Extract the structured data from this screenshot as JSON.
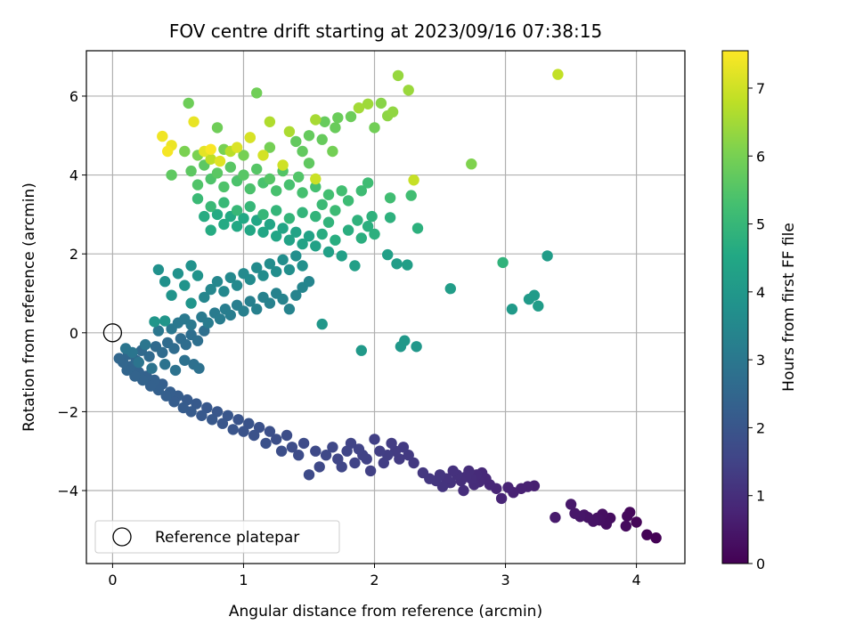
{
  "chart_data": {
    "type": "scatter",
    "title": "FOV centre drift starting at 2023/09/16 07:38:15",
    "xlabel": "Angular distance from reference (arcmin)",
    "ylabel": "Rotation from reference (arcmin)",
    "xlim": [
      -0.2,
      4.37
    ],
    "ylim": [
      -5.85,
      7.15
    ],
    "xticks": [
      0,
      1,
      2,
      3,
      4
    ],
    "yticks": [
      -4,
      -2,
      0,
      2,
      4,
      6
    ],
    "grid": true,
    "legend": {
      "position": "lower-left",
      "entries": [
        "Reference platepar"
      ]
    },
    "reference_point": {
      "x": 0,
      "y": 0,
      "label": "Reference platepar"
    },
    "colorbar": {
      "label": "Hours from first FF file",
      "colormap": "viridis",
      "range": [
        0,
        7.55
      ],
      "ticks": [
        0,
        1,
        2,
        3,
        4,
        5,
        6,
        7
      ]
    },
    "points": [
      [
        4.15,
        -5.2,
        0.02
      ],
      [
        4.08,
        -5.12,
        0.05
      ],
      [
        4.0,
        -4.8,
        0.1
      ],
      [
        3.95,
        -4.55,
        0.15
      ],
      [
        3.93,
        -4.65,
        0.18
      ],
      [
        3.92,
        -4.9,
        0.2
      ],
      [
        3.8,
        -4.7,
        0.25
      ],
      [
        3.77,
        -4.85,
        0.28
      ],
      [
        3.74,
        -4.6,
        0.3
      ],
      [
        3.72,
        -4.75,
        0.33
      ],
      [
        3.7,
        -4.7,
        0.35
      ],
      [
        3.67,
        -4.78,
        0.38
      ],
      [
        3.63,
        -4.68,
        0.4
      ],
      [
        3.6,
        -4.62,
        0.42
      ],
      [
        3.57,
        -4.66,
        0.45
      ],
      [
        3.53,
        -4.58,
        0.48
      ],
      [
        3.5,
        -4.35,
        0.5
      ],
      [
        3.38,
        -4.68,
        0.55
      ],
      [
        3.22,
        -3.88,
        0.65
      ],
      [
        3.17,
        -3.9,
        0.68
      ],
      [
        3.12,
        -3.95,
        0.7
      ],
      [
        3.06,
        -4.05,
        0.72
      ],
      [
        3.02,
        -3.92,
        0.75
      ],
      [
        2.97,
        -4.2,
        0.78
      ],
      [
        2.93,
        -3.95,
        0.8
      ],
      [
        2.88,
        -3.85,
        0.82
      ],
      [
        2.85,
        -3.7,
        0.85
      ],
      [
        2.82,
        -3.55,
        0.88
      ],
      [
        2.8,
        -3.78,
        0.9
      ],
      [
        2.78,
        -3.6,
        0.92
      ],
      [
        2.76,
        -3.85,
        0.94
      ],
      [
        2.74,
        -3.7,
        0.96
      ],
      [
        2.72,
        -3.5,
        0.98
      ],
      [
        2.7,
        -3.65,
        1.0
      ],
      [
        2.68,
        -4.0,
        1.0
      ],
      [
        2.66,
        -3.75,
        1.02
      ],
      [
        2.63,
        -3.6,
        1.05
      ],
      [
        2.6,
        -3.5,
        1.07
      ],
      [
        2.58,
        -3.8,
        1.1
      ],
      [
        2.55,
        -3.7,
        1.12
      ],
      [
        2.52,
        -3.9,
        1.14
      ],
      [
        2.5,
        -3.6,
        1.16
      ],
      [
        2.47,
        -3.75,
        1.18
      ],
      [
        2.42,
        -3.7,
        1.2
      ],
      [
        2.37,
        -3.55,
        1.22
      ],
      [
        2.3,
        -3.3,
        1.25
      ],
      [
        2.26,
        -3.1,
        1.27
      ],
      [
        2.22,
        -2.9,
        1.3
      ],
      [
        2.19,
        -3.2,
        1.3
      ],
      [
        2.16,
        -3.0,
        1.32
      ],
      [
        2.13,
        -2.8,
        1.34
      ],
      [
        2.1,
        -3.1,
        1.36
      ],
      [
        2.07,
        -3.3,
        1.38
      ],
      [
        2.04,
        -3.0,
        1.4
      ],
      [
        2.0,
        -2.7,
        1.42
      ],
      [
        1.97,
        -3.5,
        1.44
      ],
      [
        1.94,
        -3.2,
        1.46
      ],
      [
        1.91,
        -3.1,
        1.48
      ],
      [
        1.88,
        -2.95,
        1.5
      ],
      [
        1.85,
        -3.3,
        1.52
      ],
      [
        1.82,
        -2.8,
        1.54
      ],
      [
        1.79,
        -3.0,
        1.56
      ],
      [
        1.75,
        -3.4,
        1.58
      ],
      [
        1.72,
        -3.2,
        1.6
      ],
      [
        1.68,
        -2.9,
        1.62
      ],
      [
        1.63,
        -3.1,
        1.64
      ],
      [
        1.58,
        -3.4,
        1.66
      ],
      [
        1.55,
        -3.0,
        1.68
      ],
      [
        1.5,
        -3.6,
        1.7
      ],
      [
        1.46,
        -2.8,
        1.72
      ],
      [
        1.42,
        -3.1,
        1.74
      ],
      [
        1.37,
        -2.9,
        1.76
      ],
      [
        1.33,
        -2.6,
        1.78
      ],
      [
        1.29,
        -3.0,
        1.8
      ],
      [
        1.25,
        -2.7,
        1.82
      ],
      [
        1.2,
        -2.5,
        1.84
      ],
      [
        1.17,
        -2.8,
        1.86
      ],
      [
        1.12,
        -2.4,
        1.88
      ],
      [
        1.08,
        -2.6,
        1.9
      ],
      [
        1.04,
        -2.3,
        1.92
      ],
      [
        1.0,
        -2.5,
        1.94
      ],
      [
        0.96,
        -2.2,
        1.96
      ],
      [
        0.92,
        -2.45,
        1.98
      ],
      [
        0.88,
        -2.1,
        2.0
      ],
      [
        0.84,
        -2.3,
        2.02
      ],
      [
        0.8,
        -2.0,
        2.04
      ],
      [
        0.76,
        -2.2,
        2.06
      ],
      [
        0.72,
        -1.9,
        2.08
      ],
      [
        0.68,
        -2.1,
        2.1
      ],
      [
        0.64,
        -1.8,
        2.12
      ],
      [
        0.6,
        -2.0,
        2.14
      ],
      [
        0.57,
        -1.7,
        2.16
      ],
      [
        0.54,
        -1.9,
        2.18
      ],
      [
        0.5,
        -1.6,
        2.2
      ],
      [
        0.47,
        -1.75,
        2.22
      ],
      [
        0.44,
        -1.5,
        2.24
      ],
      [
        0.41,
        -1.6,
        2.26
      ],
      [
        0.38,
        -1.3,
        2.28
      ],
      [
        0.35,
        -1.45,
        2.3
      ],
      [
        0.32,
        -1.2,
        2.32
      ],
      [
        0.29,
        -1.35,
        2.34
      ],
      [
        0.26,
        -1.1,
        2.36
      ],
      [
        0.23,
        -1.2,
        2.38
      ],
      [
        0.2,
        -1.0,
        2.4
      ],
      [
        0.17,
        -1.1,
        2.42
      ],
      [
        0.14,
        -0.85,
        2.44
      ],
      [
        0.11,
        -0.95,
        2.46
      ],
      [
        0.08,
        -0.75,
        2.48
      ],
      [
        0.05,
        -0.65,
        2.5
      ],
      [
        0.12,
        -0.55,
        2.52
      ],
      [
        0.18,
        -0.7,
        2.54
      ],
      [
        0.22,
        -0.45,
        2.56
      ],
      [
        0.28,
        -0.6,
        2.58
      ],
      [
        0.33,
        -0.35,
        2.6
      ],
      [
        0.38,
        -0.5,
        2.62
      ],
      [
        0.42,
        -0.25,
        2.64
      ],
      [
        0.47,
        -0.4,
        2.66
      ],
      [
        0.52,
        -0.15,
        2.68
      ],
      [
        0.56,
        -0.3,
        2.7
      ],
      [
        0.6,
        -0.05,
        2.72
      ],
      [
        0.65,
        -0.2,
        2.74
      ],
      [
        0.7,
        0.05,
        2.76
      ],
      [
        0.62,
        -0.8,
        2.78
      ],
      [
        0.66,
        -0.9,
        2.8
      ],
      [
        0.55,
        -0.7,
        2.82
      ],
      [
        0.48,
        -0.95,
        2.84
      ],
      [
        0.4,
        -0.8,
        2.86
      ],
      [
        0.3,
        -0.9,
        2.88
      ],
      [
        0.2,
        -0.75,
        2.9
      ],
      [
        0.15,
        -0.5,
        2.92
      ],
      [
        0.1,
        -0.4,
        2.94
      ],
      [
        0.25,
        -0.3,
        2.96
      ],
      [
        0.35,
        0.05,
        2.98
      ],
      [
        0.45,
        0.1,
        3.0
      ],
      [
        0.5,
        0.25,
        3.02
      ],
      [
        0.55,
        0.35,
        3.04
      ],
      [
        0.6,
        0.2,
        3.06
      ],
      [
        0.68,
        0.4,
        3.08
      ],
      [
        0.73,
        0.25,
        3.1
      ],
      [
        0.78,
        0.5,
        3.12
      ],
      [
        0.82,
        0.35,
        3.14
      ],
      [
        0.86,
        0.6,
        3.16
      ],
      [
        0.9,
        0.45,
        3.18
      ],
      [
        0.95,
        0.7,
        3.2
      ],
      [
        1.0,
        0.55,
        3.22
      ],
      [
        1.05,
        0.8,
        3.24
      ],
      [
        1.1,
        0.6,
        3.26
      ],
      [
        1.15,
        0.9,
        3.28
      ],
      [
        1.2,
        0.75,
        3.3
      ],
      [
        1.25,
        1.0,
        3.32
      ],
      [
        1.3,
        0.85,
        3.34
      ],
      [
        1.35,
        0.6,
        3.36
      ],
      [
        1.4,
        0.95,
        3.38
      ],
      [
        1.45,
        1.15,
        3.4
      ],
      [
        1.5,
        1.3,
        3.42
      ],
      [
        0.7,
        0.9,
        3.44
      ],
      [
        0.75,
        1.1,
        3.46
      ],
      [
        0.8,
        1.3,
        3.48
      ],
      [
        0.85,
        1.05,
        3.5
      ],
      [
        0.9,
        1.4,
        3.52
      ],
      [
        0.95,
        1.2,
        3.54
      ],
      [
        1.0,
        1.5,
        3.56
      ],
      [
        1.05,
        1.35,
        3.58
      ],
      [
        1.1,
        1.65,
        3.6
      ],
      [
        1.15,
        1.45,
        3.62
      ],
      [
        1.2,
        1.75,
        3.64
      ],
      [
        1.25,
        1.55,
        3.66
      ],
      [
        1.3,
        1.85,
        3.68
      ],
      [
        1.35,
        1.6,
        3.7
      ],
      [
        1.4,
        1.95,
        3.72
      ],
      [
        1.45,
        1.7,
        3.74
      ],
      [
        0.35,
        1.6,
        3.76
      ],
      [
        0.4,
        1.3,
        3.78
      ],
      [
        0.5,
        1.5,
        3.8
      ],
      [
        0.6,
        1.7,
        3.82
      ],
      [
        0.65,
        1.45,
        3.84
      ],
      [
        0.55,
        1.2,
        3.86
      ],
      [
        0.45,
        0.95,
        3.88
      ],
      [
        0.6,
        0.75,
        3.9
      ],
      [
        0.4,
        0.3,
        3.92
      ],
      [
        0.32,
        0.28,
        3.94
      ],
      [
        1.6,
        0.22,
        3.96
      ],
      [
        2.32,
        -0.35,
        3.98
      ],
      [
        2.2,
        -0.35,
        4.0
      ],
      [
        2.23,
        -0.2,
        4.02
      ],
      [
        1.9,
        -0.45,
        4.04
      ],
      [
        3.05,
        0.6,
        4.06
      ],
      [
        3.18,
        0.85,
        4.08
      ],
      [
        3.22,
        0.95,
        4.1
      ],
      [
        3.25,
        0.68,
        4.12
      ],
      [
        3.32,
        1.95,
        4.14
      ],
      [
        2.58,
        1.12,
        4.16
      ],
      [
        2.17,
        1.75,
        4.18
      ],
      [
        2.25,
        1.72,
        4.2
      ],
      [
        2.1,
        1.98,
        4.22
      ],
      [
        1.85,
        1.7,
        4.24
      ],
      [
        1.75,
        1.95,
        4.26
      ],
      [
        1.65,
        2.05,
        4.28
      ],
      [
        1.55,
        2.2,
        4.3
      ],
      [
        1.5,
        2.45,
        4.32
      ],
      [
        1.45,
        2.25,
        4.34
      ],
      [
        1.4,
        2.55,
        4.36
      ],
      [
        1.35,
        2.35,
        4.38
      ],
      [
        1.3,
        2.65,
        4.4
      ],
      [
        1.25,
        2.45,
        4.42
      ],
      [
        1.2,
        2.75,
        4.44
      ],
      [
        1.15,
        2.55,
        4.46
      ],
      [
        1.1,
        2.85,
        4.48
      ],
      [
        1.05,
        2.6,
        4.5
      ],
      [
        1.0,
        2.9,
        4.52
      ],
      [
        0.95,
        2.7,
        4.54
      ],
      [
        0.9,
        2.95,
        4.56
      ],
      [
        0.85,
        2.75,
        4.58
      ],
      [
        0.8,
        3.0,
        4.6
      ],
      [
        0.75,
        2.6,
        4.62
      ],
      [
        0.7,
        2.95,
        4.64
      ],
      [
        1.6,
        2.5,
        4.66
      ],
      [
        1.7,
        2.35,
        4.68
      ],
      [
        1.8,
        2.6,
        4.7
      ],
      [
        1.9,
        2.4,
        4.72
      ],
      [
        1.95,
        2.7,
        4.74
      ],
      [
        2.0,
        2.5,
        4.76
      ],
      [
        2.33,
        2.65,
        4.78
      ],
      [
        2.12,
        2.92,
        4.8
      ],
      [
        1.98,
        2.95,
        4.82
      ],
      [
        1.87,
        2.85,
        4.84
      ],
      [
        2.98,
        1.78,
        4.86
      ],
      [
        1.65,
        2.8,
        4.88
      ],
      [
        1.55,
        2.95,
        4.9
      ],
      [
        1.45,
        3.05,
        4.92
      ],
      [
        1.35,
        2.9,
        4.94
      ],
      [
        1.25,
        3.1,
        4.96
      ],
      [
        1.15,
        3.0,
        4.98
      ],
      [
        1.05,
        3.2,
        5.0
      ],
      [
        0.95,
        3.1,
        5.02
      ],
      [
        0.85,
        3.3,
        5.04
      ],
      [
        0.75,
        3.2,
        5.06
      ],
      [
        0.65,
        3.4,
        5.08
      ],
      [
        1.6,
        3.25,
        5.1
      ],
      [
        1.7,
        3.1,
        5.12
      ],
      [
        1.8,
        3.35,
        5.14
      ],
      [
        1.9,
        3.6,
        5.16
      ],
      [
        1.95,
        3.8,
        5.18
      ],
      [
        2.12,
        3.42,
        5.2
      ],
      [
        2.28,
        3.48,
        5.22
      ],
      [
        1.75,
        3.6,
        5.24
      ],
      [
        1.65,
        3.5,
        5.26
      ],
      [
        1.55,
        3.7,
        5.28
      ],
      [
        1.45,
        3.55,
        5.3
      ],
      [
        1.35,
        3.75,
        5.32
      ],
      [
        1.25,
        3.6,
        5.34
      ],
      [
        1.15,
        3.8,
        5.36
      ],
      [
        1.05,
        3.65,
        5.38
      ],
      [
        0.95,
        3.85,
        5.4
      ],
      [
        0.85,
        3.7,
        5.42
      ],
      [
        0.75,
        3.9,
        5.44
      ],
      [
        0.65,
        3.75,
        5.46
      ],
      [
        1.42,
        3.95,
        5.48
      ],
      [
        1.3,
        4.1,
        5.5
      ],
      [
        1.2,
        3.9,
        5.52
      ],
      [
        1.1,
        4.15,
        5.54
      ],
      [
        1.0,
        4.0,
        5.56
      ],
      [
        0.9,
        4.2,
        5.58
      ],
      [
        0.8,
        4.05,
        5.6
      ],
      [
        0.7,
        4.25,
        5.62
      ],
      [
        0.6,
        4.1,
        5.64
      ],
      [
        0.45,
        4.0,
        5.66
      ],
      [
        1.5,
        4.3,
        5.68
      ],
      [
        1.45,
        4.6,
        5.7
      ],
      [
        1.4,
        4.85,
        5.72
      ],
      [
        1.5,
        5.0,
        5.74
      ],
      [
        1.6,
        4.9,
        5.76
      ],
      [
        1.62,
        5.35,
        5.78
      ],
      [
        1.7,
        5.2,
        5.8
      ],
      [
        1.72,
        5.45,
        5.82
      ],
      [
        1.82,
        5.48,
        5.84
      ],
      [
        0.58,
        5.82,
        5.86
      ],
      [
        0.8,
        5.2,
        5.88
      ],
      [
        1.1,
        6.08,
        5.9
      ],
      [
        2.0,
        5.2,
        5.92
      ],
      [
        1.68,
        4.6,
        5.94
      ],
      [
        1.2,
        4.7,
        5.96
      ],
      [
        1.0,
        4.5,
        5.98
      ],
      [
        0.85,
        4.65,
        6.0
      ],
      [
        0.65,
        4.5,
        6.02
      ],
      [
        0.55,
        4.6,
        6.04
      ],
      [
        2.74,
        4.28,
        6.1
      ],
      [
        2.05,
        5.82,
        6.2
      ],
      [
        2.1,
        5.5,
        6.25
      ],
      [
        2.14,
        5.6,
        6.3
      ],
      [
        2.18,
        6.52,
        6.35
      ],
      [
        2.26,
        6.15,
        6.4
      ],
      [
        1.95,
        5.8,
        6.45
      ],
      [
        1.88,
        5.7,
        6.5
      ],
      [
        1.55,
        5.4,
        6.55
      ],
      [
        1.35,
        5.1,
        6.6
      ],
      [
        1.2,
        5.35,
        6.65
      ],
      [
        1.05,
        4.95,
        6.7
      ],
      [
        0.9,
        4.6,
        6.75
      ],
      [
        0.75,
        4.4,
        6.8
      ],
      [
        3.4,
        6.55,
        6.85
      ],
      [
        2.3,
        3.87,
        6.9
      ],
      [
        1.55,
        3.9,
        6.95
      ],
      [
        1.3,
        4.25,
        7.0
      ],
      [
        1.15,
        4.5,
        7.05
      ],
      [
        1.05,
        4.95,
        7.1
      ],
      [
        0.95,
        4.7,
        7.15
      ],
      [
        0.82,
        4.35,
        7.2
      ],
      [
        0.7,
        4.6,
        7.25
      ],
      [
        0.62,
        5.35,
        7.3
      ],
      [
        0.45,
        4.75,
        7.35
      ],
      [
        0.38,
        4.98,
        7.4
      ],
      [
        0.42,
        4.6,
        7.45
      ],
      [
        0.75,
        4.65,
        7.5
      ]
    ]
  }
}
